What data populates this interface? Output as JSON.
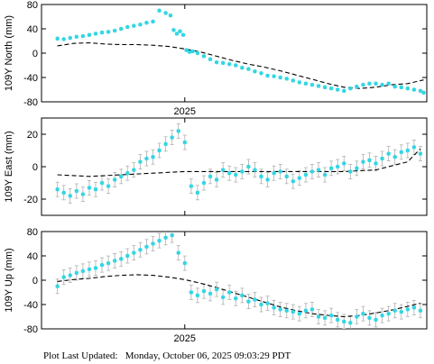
{
  "footer": {
    "label": "Plot Last Updated:",
    "timestamp": "Monday, October 06, 2025 09:03:29 PDT"
  },
  "colors": {
    "points": "#33d6e3",
    "errorbars": "#b0b0b0",
    "model": "#000000",
    "axes": "#000000"
  },
  "chart_data": [
    {
      "type": "scatter",
      "ylabel": "109Y North (mm)",
      "xlabel": "",
      "x_tick_labels": [
        "2025"
      ],
      "ylim": [
        -80,
        80
      ],
      "yticks": [
        -80,
        -40,
        0,
        40,
        80
      ],
      "xlim": [
        2024.55,
        2025.76
      ],
      "x_ticks": [
        2025.0
      ],
      "error_bars": false,
      "series": [
        {
          "kind": "points",
          "x": [
            2024.6,
            2024.62,
            2024.64,
            2024.66,
            2024.68,
            2024.7,
            2024.72,
            2024.74,
            2024.76,
            2024.78,
            2024.8,
            2024.82,
            2024.84,
            2024.86,
            2024.88,
            2024.9,
            2024.92,
            2024.94,
            2024.955,
            2024.965,
            2024.975,
            2024.985,
            2024.995,
            2025.005,
            2025.015,
            2025.025,
            2025.04,
            2025.06,
            2025.08,
            2025.1,
            2025.12,
            2025.14,
            2025.16,
            2025.18,
            2025.2,
            2025.22,
            2025.24,
            2025.26,
            2025.28,
            2025.3,
            2025.32,
            2025.34,
            2025.36,
            2025.38,
            2025.4,
            2025.42,
            2025.44,
            2025.46,
            2025.48,
            2025.5,
            2025.52,
            2025.54,
            2025.56,
            2025.58,
            2025.6,
            2025.62,
            2025.64,
            2025.66,
            2025.68,
            2025.7,
            2025.72,
            2025.74,
            2025.75
          ],
          "y": [
            24,
            23,
            25,
            27,
            28,
            30,
            32,
            34,
            35,
            37,
            40,
            43,
            45,
            47,
            50,
            52,
            70,
            66,
            62,
            38,
            32,
            36,
            30,
            5,
            2,
            3,
            0,
            -5,
            -10,
            -15,
            -16,
            -18,
            -20,
            -24,
            -26,
            -30,
            -33,
            -37,
            -38,
            -40,
            -42,
            -45,
            -48,
            -50,
            -52,
            -54,
            -56,
            -58,
            -60,
            -62,
            -58,
            -55,
            -52,
            -50,
            -50,
            -52,
            -50,
            -55,
            -56,
            -58,
            -60,
            -62,
            -65
          ]
        },
        {
          "kind": "model-dashed",
          "x": [
            2024.6,
            2024.65,
            2024.7,
            2024.75,
            2024.8,
            2024.85,
            2024.9,
            2024.95,
            2025.0,
            2025.05,
            2025.1,
            2025.15,
            2025.2,
            2025.25,
            2025.3,
            2025.35,
            2025.4,
            2025.45,
            2025.5,
            2025.55,
            2025.6,
            2025.65,
            2025.7,
            2025.75
          ],
          "y": [
            12,
            16,
            17,
            15,
            14,
            14,
            13,
            11,
            7,
            2,
            -5,
            -12,
            -18,
            -23,
            -29,
            -36,
            -43,
            -50,
            -56,
            -58,
            -56,
            -52,
            -50,
            -44
          ]
        }
      ]
    },
    {
      "type": "scatter",
      "ylabel": "109Y East (mm)",
      "xlabel": "",
      "x_tick_labels": [],
      "ylim": [
        -30,
        30
      ],
      "yticks": [
        -20,
        0,
        20
      ],
      "xlim": [
        2024.55,
        2025.76
      ],
      "x_ticks": [
        2025.0
      ],
      "error_bars": true,
      "series": [
        {
          "kind": "points",
          "x": [
            2024.6,
            2024.62,
            2024.64,
            2024.66,
            2024.68,
            2024.7,
            2024.72,
            2024.74,
            2024.76,
            2024.78,
            2024.8,
            2024.82,
            2024.84,
            2024.86,
            2024.88,
            2024.9,
            2024.92,
            2024.94,
            2024.96,
            2024.98,
            2025.0,
            2025.02,
            2025.04,
            2025.06,
            2025.08,
            2025.1,
            2025.12,
            2025.14,
            2025.16,
            2025.18,
            2025.2,
            2025.22,
            2025.24,
            2025.26,
            2025.28,
            2025.3,
            2025.32,
            2025.34,
            2025.36,
            2025.38,
            2025.4,
            2025.42,
            2025.44,
            2025.46,
            2025.48,
            2025.5,
            2025.52,
            2025.54,
            2025.56,
            2025.58,
            2025.6,
            2025.62,
            2025.64,
            2025.66,
            2025.68,
            2025.7,
            2025.72,
            2025.74
          ],
          "y": [
            -14,
            -16,
            -18,
            -15,
            -17,
            -13,
            -14,
            -10,
            -12,
            -8,
            -6,
            -4,
            -2,
            3,
            5,
            6,
            10,
            14,
            18,
            22,
            15,
            -12,
            -16,
            -10,
            -6,
            -8,
            -2,
            -4,
            -5,
            -3,
            0,
            -2,
            -6,
            -8,
            -4,
            -3,
            -6,
            -9,
            -7,
            -5,
            -3,
            -2,
            -5,
            -1,
            0,
            2,
            -3,
            -1,
            3,
            4,
            2,
            5,
            8,
            6,
            9,
            10,
            12,
            8
          ]
        },
        {
          "kind": "model-dashed",
          "x": [
            2024.6,
            2024.7,
            2024.8,
            2024.9,
            2025.0,
            2025.1,
            2025.2,
            2025.3,
            2025.4,
            2025.5,
            2025.6,
            2025.7,
            2025.74
          ],
          "y": [
            -5,
            -6,
            -5,
            -4,
            -3,
            -3,
            -3,
            -3,
            -3,
            -3,
            -2,
            3,
            11
          ]
        }
      ]
    },
    {
      "type": "scatter",
      "ylabel": "109Y Up (mm)",
      "xlabel": "",
      "x_tick_labels": [
        "2025"
      ],
      "ylim": [
        -80,
        80
      ],
      "yticks": [
        -80,
        -40,
        0,
        40,
        80
      ],
      "xlim": [
        2024.55,
        2025.76
      ],
      "x_ticks": [
        2025.0
      ],
      "error_bars": true,
      "series": [
        {
          "kind": "points",
          "x": [
            2024.6,
            2024.62,
            2024.64,
            2024.66,
            2024.68,
            2024.7,
            2024.72,
            2024.74,
            2024.76,
            2024.78,
            2024.8,
            2024.82,
            2024.84,
            2024.86,
            2024.88,
            2024.9,
            2024.92,
            2024.94,
            2024.96,
            2024.98,
            2025.0,
            2025.02,
            2025.04,
            2025.06,
            2025.08,
            2025.1,
            2025.12,
            2025.14,
            2025.16,
            2025.18,
            2025.2,
            2025.22,
            2025.24,
            2025.26,
            2025.28,
            2025.3,
            2025.32,
            2025.34,
            2025.36,
            2025.38,
            2025.4,
            2025.42,
            2025.44,
            2025.46,
            2025.48,
            2025.5,
            2025.52,
            2025.54,
            2025.56,
            2025.58,
            2025.6,
            2025.62,
            2025.64,
            2025.66,
            2025.68,
            2025.7,
            2025.72,
            2025.74
          ],
          "y": [
            -10,
            5,
            8,
            12,
            15,
            18,
            20,
            25,
            28,
            32,
            35,
            40,
            45,
            50,
            55,
            60,
            65,
            70,
            74,
            45,
            28,
            -20,
            -25,
            -18,
            -22,
            -15,
            -28,
            -20,
            -30,
            -25,
            -35,
            -32,
            -40,
            -38,
            -45,
            -48,
            -50,
            -52,
            -55,
            -50,
            -48,
            -60,
            -62,
            -58,
            -65,
            -68,
            -70,
            -60,
            -55,
            -62,
            -65,
            -58,
            -55,
            -50,
            -52,
            -48,
            -45,
            -50
          ]
        },
        {
          "kind": "model-dashed",
          "x": [
            2024.6,
            2024.65,
            2024.7,
            2024.75,
            2024.8,
            2024.85,
            2024.9,
            2024.95,
            2025.0,
            2025.05,
            2025.1,
            2025.15,
            2025.2,
            2025.25,
            2025.3,
            2025.35,
            2025.4,
            2025.45,
            2025.5,
            2025.55,
            2025.6,
            2025.65,
            2025.7,
            2025.74
          ],
          "y": [
            -2,
            1,
            3,
            6,
            8,
            9,
            8,
            5,
            1,
            -5,
            -12,
            -20,
            -28,
            -36,
            -44,
            -50,
            -55,
            -58,
            -60,
            -58,
            -54,
            -49,
            -43,
            -38
          ]
        }
      ]
    }
  ]
}
